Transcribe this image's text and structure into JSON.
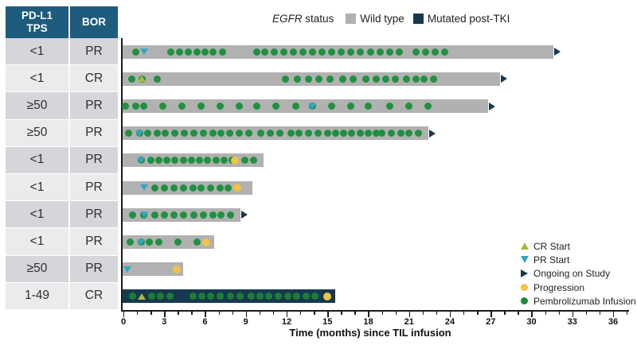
{
  "colors": {
    "header_teal": "#1d5c7d",
    "row_dark": "#d6d6da",
    "row_light": "#ebebee",
    "bar_gray": "#b1b1b1",
    "bar_navy": "#16394f",
    "infusion_green": "#1f9140",
    "infusion_green_on_navy": "#1d7d33",
    "progression_yellow": "#efc444",
    "pr_teal": "#33a7c6",
    "cr_yellowgreen": "#a9b937",
    "arrow_navy": "#16394f"
  },
  "table": {
    "col1_line1": "PD-L1",
    "col1_line2": "TPS",
    "col2": "BOR"
  },
  "top_legend": {
    "title_italic": "EGFR",
    "title_rest": " status",
    "items": [
      {
        "label": "Wild type",
        "color": "#b1b1b1"
      },
      {
        "label": "Mutated post-TKI",
        "color": "#16394f"
      }
    ]
  },
  "marker_legend": [
    {
      "label": "CR Start",
      "type": "tri-up",
      "color": "#a9b937"
    },
    {
      "label": "PR Start",
      "type": "tri-down",
      "color": "#33a7c6"
    },
    {
      "label": "Ongoing on Study",
      "type": "arrow",
      "color": "#16394f"
    },
    {
      "label": "Progression",
      "type": "circle",
      "color": "#efc444"
    },
    {
      "label": "Pembrolizumab Infusion",
      "type": "circle",
      "color": "#1c8a3a"
    }
  ],
  "axis": {
    "title": "Time (months) since TIL infusion",
    "major_ticks": [
      0,
      3,
      6,
      9,
      12,
      15,
      18,
      21,
      24,
      27,
      30,
      33,
      36
    ],
    "minor_tick_every": 1,
    "max_minor": 37
  },
  "chart_data": {
    "type": "swimmer",
    "x_unit": "months since TIL infusion",
    "xlim": [
      0,
      37
    ],
    "patients": [
      {
        "pdl1": "<1",
        "bor": "PR",
        "egfr": "wild",
        "bar_end": 31.6,
        "ongoing": true,
        "pr_start": 1.5,
        "cr_start": null,
        "progression": null,
        "infusions": [
          0.9,
          3.5,
          4.1,
          4.8,
          5.4,
          6.0,
          6.6,
          7.3,
          9.8,
          10.4,
          11.1,
          11.8,
          12.5,
          13.2,
          13.9,
          14.6,
          15.3,
          16.0,
          16.7,
          17.4,
          18.2,
          18.9,
          19.6,
          20.3,
          21.5,
          22.2,
          22.9,
          23.6
        ]
      },
      {
        "pdl1": "<1",
        "bor": "CR",
        "egfr": "wild",
        "bar_end": 27.7,
        "ongoing": true,
        "pr_start": null,
        "cr_start": 1.35,
        "progression": null,
        "infusions": [
          0.6,
          1.35,
          2.5,
          11.9,
          12.8,
          13.6,
          14.4,
          15.2,
          16.1,
          16.9,
          17.8,
          18.6,
          19.3,
          20.0,
          20.8,
          21.5,
          22.1,
          22.8
        ]
      },
      {
        "pdl1": "≥50",
        "bor": "PR",
        "egfr": "wild",
        "bar_end": 26.8,
        "ongoing": true,
        "pr_start": 13.9,
        "cr_start": null,
        "progression": null,
        "infusions": [
          0.15,
          0.9,
          1.5,
          2.9,
          4.3,
          5.7,
          7.1,
          8.5,
          9.8,
          11.2,
          12.7,
          13.9,
          15.3,
          16.7,
          18.0,
          19.6,
          21.0,
          22.4
        ]
      },
      {
        "pdl1": "≥50",
        "bor": "PR",
        "egfr": "wild",
        "bar_end": 22.4,
        "ongoing": true,
        "pr_start": 1.2,
        "cr_start": null,
        "progression": null,
        "infusions": [
          0.4,
          1.2,
          1.8,
          2.5,
          3.1,
          3.8,
          4.5,
          5.2,
          5.9,
          6.6,
          7.2,
          7.8,
          8.5,
          9.2,
          10.1,
          10.8,
          11.5,
          12.3,
          12.9,
          13.6,
          14.3,
          15.0,
          15.6,
          16.2,
          16.8,
          17.4,
          18.0,
          18.6,
          19.0,
          19.7,
          20.4,
          21.0,
          21.7
        ]
      },
      {
        "pdl1": "<1",
        "bor": "PR",
        "egfr": "wild",
        "bar_end": 10.3,
        "ongoing": false,
        "pr_start": 1.3,
        "cr_start": null,
        "progression": 8.2,
        "infusions": [
          1.3,
          2.0,
          2.6,
          3.2,
          3.8,
          4.4,
          5.0,
          5.6,
          6.2,
          6.8,
          7.4,
          8.0,
          8.9,
          9.6
        ]
      },
      {
        "pdl1": "<1",
        "bor": "PR",
        "egfr": "wild",
        "bar_end": 9.5,
        "ongoing": false,
        "pr_start": 1.5,
        "cr_start": null,
        "progression": 8.4,
        "infusions": [
          2.3,
          3.0,
          3.7,
          4.4,
          5.1,
          5.7,
          6.4,
          7.1,
          7.7
        ]
      },
      {
        "pdl1": "<1",
        "bor": "PR",
        "egfr": "wild",
        "bar_end": 8.6,
        "ongoing": true,
        "pr_start": 1.5,
        "cr_start": null,
        "progression": null,
        "infusions": [
          0.7,
          1.5,
          2.3,
          3.0,
          3.7,
          4.4,
          5.2,
          5.9,
          6.6,
          7.2,
          7.9
        ]
      },
      {
        "pdl1": "<1",
        "bor": "PR",
        "egfr": "wild",
        "bar_end": 6.7,
        "ongoing": false,
        "pr_start": 1.3,
        "cr_start": null,
        "progression": 6.1,
        "infusions": [
          0.5,
          1.3,
          1.9,
          2.6,
          4.0,
          5.4
        ]
      },
      {
        "pdl1": "≥50",
        "bor": "PR",
        "egfr": "wild",
        "bar_end": 4.4,
        "ongoing": false,
        "pr_start": 0.3,
        "cr_start": null,
        "progression": 3.9,
        "infusions": []
      },
      {
        "pdl1": "1-49",
        "bor": "CR",
        "egfr": "mutated",
        "bar_end": 15.6,
        "ongoing": false,
        "pr_start": null,
        "cr_start": 1.35,
        "progression": 15.0,
        "infusions": [
          0.7,
          2.05,
          2.75,
          3.4,
          5.1,
          5.75,
          6.4,
          7.1,
          7.9,
          8.6,
          9.4,
          10.05,
          10.7,
          11.4,
          12.1,
          12.75,
          13.45,
          14.1
        ]
      }
    ]
  }
}
